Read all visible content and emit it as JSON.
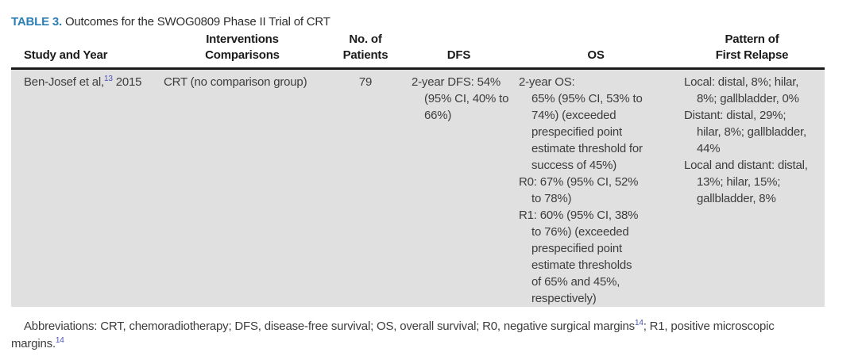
{
  "colors": {
    "accent_blue": "#2b7fb5",
    "reference_blue": "#4a54b4",
    "row_bg": "#e0e0e0"
  },
  "title": {
    "label": "TABLE 3.",
    "text": "Outcomes for the SWOG0809 Phase II Trial of CRT"
  },
  "table": {
    "columns": [
      {
        "line1": "",
        "line2": "Study and Year"
      },
      {
        "line1": "Interventions",
        "line2": "Comparisons"
      },
      {
        "line1": "",
        "line2": "No. of Patients"
      },
      {
        "line1": "",
        "line2": "DFS"
      },
      {
        "line1": "",
        "line2": "OS"
      },
      {
        "line1": "Pattern of",
        "line2": "First Relapse"
      }
    ],
    "row": {
      "study": {
        "parts": [
          {
            "t": "Ben-Josef et al,"
          },
          {
            "sup": "13"
          },
          {
            "t": " 2015"
          }
        ]
      },
      "interventions": "CRT (no comparison group)",
      "patients": "79",
      "dfs": [
        {
          "lines": [
            "2-year DFS: 54%",
            "(95% CI, 40% to",
            "66%)"
          ]
        }
      ],
      "os": [
        {
          "lines": [
            "2-year OS:",
            "65% (95% CI, 53% to",
            "74%) (exceeded",
            "prespecified point",
            "estimate threshold for",
            "success of 45%)"
          ]
        },
        {
          "lines": [
            "R0: 67% (95% CI, 52%",
            "to 78%)"
          ]
        },
        {
          "lines": [
            "R1: 60% (95% CI, 38%",
            "to 76%) (exceeded",
            "prespecified point",
            "estimate thresholds",
            "of 65% and 45%,",
            "respectively)"
          ]
        }
      ],
      "relapse": [
        {
          "lines": [
            "Local: distal, 8%; hilar,",
            "8%; gallbladder, 0%"
          ]
        },
        {
          "lines": [
            "Distant: distal, 29%;",
            "hilar, 8%; gallbladder,",
            "44%"
          ]
        },
        {
          "lines": [
            "Local and distant: distal,",
            "13%; hilar, 15%;",
            "gallbladder, 8%"
          ]
        }
      ]
    }
  },
  "footnote": {
    "line1": {
      "parts": [
        {
          "t": "Abbreviations: CRT, chemoradiotherapy; DFS, disease-free survival; OS, overall survival; R0, negative surgical margins"
        },
        {
          "sup": "14"
        },
        {
          "t": "; R1, positive microscopic"
        }
      ]
    },
    "line2": {
      "parts": [
        {
          "t": "margins."
        },
        {
          "sup": "14"
        }
      ]
    }
  }
}
